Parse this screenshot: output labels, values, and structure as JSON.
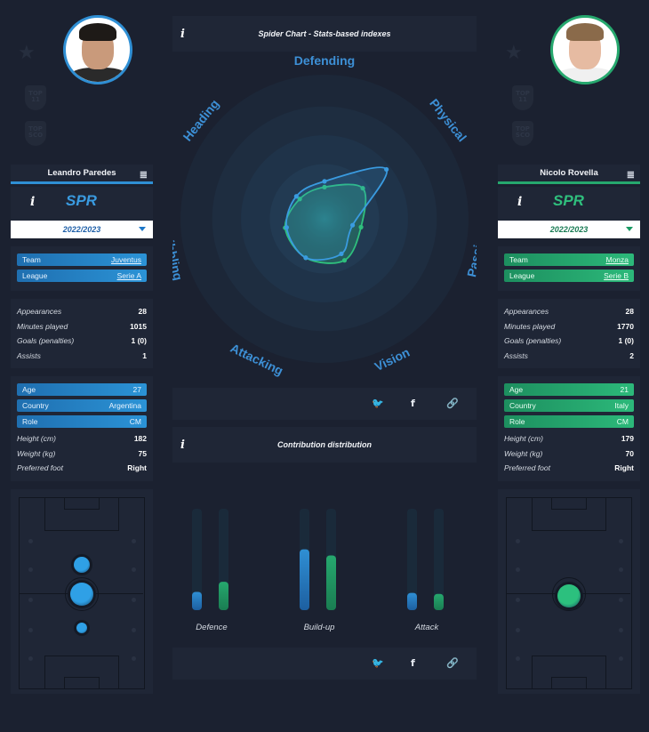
{
  "left_player": {
    "name": "Leandro Paredes",
    "spr_label": "SPR",
    "season": "2022/2023",
    "team_label": "Team",
    "team": "Juventus",
    "league_label": "League",
    "league": "Serie A",
    "stats": [
      {
        "k": "Appearances",
        "v": "28"
      },
      {
        "k": "Minutes played",
        "v": "1015"
      },
      {
        "k": "Goals (penalties)",
        "v": "1 (0)"
      },
      {
        "k": "Assists",
        "v": "1"
      }
    ],
    "bio_tags": [
      {
        "k": "Age",
        "v": "27"
      },
      {
        "k": "Country",
        "v": "Argentina"
      },
      {
        "k": "Role",
        "v": "CM"
      }
    ],
    "bio": [
      {
        "k": "Height (cm)",
        "v": "182"
      },
      {
        "k": "Weight (kg)",
        "v": "75"
      },
      {
        "k": "Preferred foot",
        "v": "Right"
      }
    ],
    "color": "#2f8fd4"
  },
  "right_player": {
    "name": "Nicolo Rovella",
    "spr_label": "SPR",
    "season": "2022/2023",
    "team_label": "Team",
    "team": "Monza",
    "league_label": "League",
    "league": "Serie B",
    "stats": [
      {
        "k": "Appearances",
        "v": "28"
      },
      {
        "k": "Minutes played",
        "v": "1770"
      },
      {
        "k": "Goals (penalties)",
        "v": "1 (0)"
      },
      {
        "k": "Assists",
        "v": "2"
      }
    ],
    "bio_tags": [
      {
        "k": "Age",
        "v": "21"
      },
      {
        "k": "Country",
        "v": "Italy"
      },
      {
        "k": "Role",
        "v": "CM"
      }
    ],
    "bio": [
      {
        "k": "Height (cm)",
        "v": "179"
      },
      {
        "k": "Weight (kg)",
        "v": "70"
      },
      {
        "k": "Preferred foot",
        "v": "Right"
      }
    ],
    "color": "#26a86e"
  },
  "spider": {
    "info_icon": "i",
    "title": "Spider Chart - Stats-based indexes",
    "axes": [
      "Defending",
      "Physical",
      "Passing",
      "Vision",
      "Attacking",
      "Dribbling",
      "Heading"
    ]
  },
  "contribution": {
    "info_icon": "i",
    "title": "Contribution distribution"
  },
  "share_icons": [
    "twitter-icon",
    "facebook-icon",
    "link-icon"
  ],
  "chart_data": [
    {
      "type": "radar",
      "title": "Spider Chart - Stats-based indexes",
      "axes": [
        "Defending",
        "Physical",
        "Passing",
        "Vision",
        "Attacking",
        "Dribbling",
        "Heading"
      ],
      "rmax": 1,
      "series": [
        {
          "name": "Leandro Paredes",
          "color": "#3a9be0",
          "values": [
            0.26,
            0.55,
            0.2,
            0.27,
            0.3,
            0.27,
            0.25
          ]
        },
        {
          "name": "Nicolo Rovella",
          "color": "#2fbf7d",
          "values": [
            0.22,
            0.34,
            0.26,
            0.32,
            0.3,
            0.28,
            0.22
          ]
        }
      ]
    },
    {
      "type": "bar",
      "title": "Contribution distribution",
      "categories": [
        "Defence",
        "Build-up",
        "Attack"
      ],
      "ylim": [
        0,
        1
      ],
      "series": [
        {
          "name": "Leandro Paredes",
          "color": "#2f8fd4",
          "values": [
            0.18,
            0.6,
            0.17
          ]
        },
        {
          "name": "Nicolo Rovella",
          "color": "#26a86e",
          "values": [
            0.28,
            0.54,
            0.16
          ]
        }
      ]
    }
  ]
}
